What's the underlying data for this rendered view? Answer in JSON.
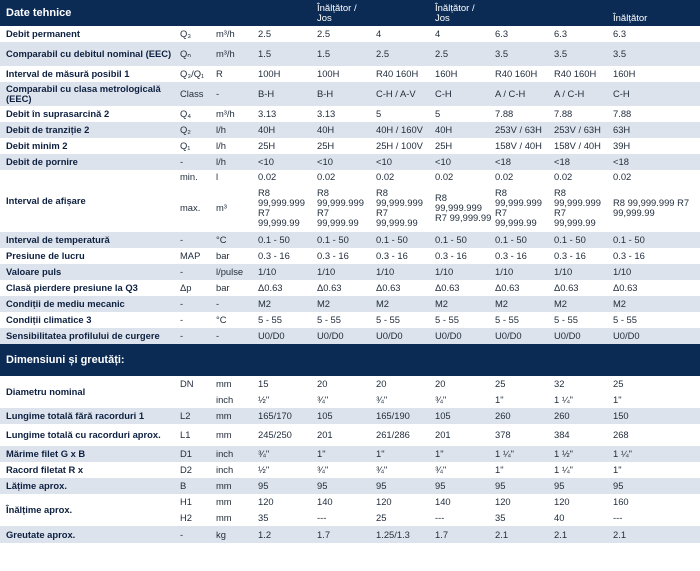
{
  "tech": {
    "title": "Date tehnice",
    "headers": [
      "",
      "",
      "",
      "",
      "Înălțător / Jos",
      "",
      "Înălțător / Jos",
      "",
      "",
      "Înălțător"
    ],
    "rows": [
      {
        "cells": [
          "Debit permanent",
          "Q₃",
          "m³/h",
          "2.5",
          "2.5",
          "4",
          "4",
          "6.3",
          "6.3",
          "6.3"
        ]
      },
      {
        "cells": [
          "Comparabil cu debitul nominal (EEC)",
          "Qₙ",
          "m³/h",
          "1.5",
          "1.5",
          "2.5",
          "2.5",
          "3.5",
          "3.5",
          "3.5"
        ]
      },
      {
        "cells": [
          "Interval de măsură posibil 1",
          "Q₃/Q₁",
          "R",
          "100H",
          "100H",
          "R40 160H",
          "160H",
          "R40 160H",
          "R40 160H",
          "160H"
        ]
      },
      {
        "cells": [
          "Comparabil cu clasa metrologicală (EEC)",
          "Class",
          "-",
          "B-H",
          "B-H",
          "C-H / A-V",
          "C-H",
          "A / C-H",
          "A / C-H",
          "C-H"
        ]
      },
      {
        "cells": [
          "Debit în suprasarcină 2",
          "Q₄",
          "m³/h",
          "3.13",
          "3.13",
          "5",
          "5",
          "7.88",
          "7.88",
          "7.88"
        ]
      },
      {
        "cells": [
          "Debit de tranziție 2",
          "Q₂",
          "l/h",
          "40H",
          "40H",
          "40H / 160V",
          "40H",
          "253V / 63H",
          "253V / 63H",
          "63H"
        ]
      },
      {
        "cells": [
          "Debit minim 2",
          "Q₁",
          "l/h",
          "25H",
          "25H",
          "25H / 100V",
          "25H",
          "158V / 40H",
          "158V / 40H",
          "39H"
        ]
      },
      {
        "cells": [
          "Debit de pornire",
          "-",
          "l/h",
          "<10",
          "<10",
          "<10",
          "<10",
          "<18",
          "<18",
          "<18"
        ]
      }
    ],
    "display": {
      "label": "Interval de afișare",
      "min": {
        "sym": "min.",
        "unit": "l",
        "values": [
          "0.02",
          "0.02",
          "0.02",
          "0.02",
          "0.02",
          "0.02",
          "0.02"
        ]
      },
      "max": {
        "sym": "max.",
        "unit": "m³",
        "values": [
          "R8 99,999.999 R7 99,999.99",
          "R8 99,999.999 R7 99,999.99",
          "R8 99,999.999 R7 99,999.99",
          "R8 99,999.999 R7 99,999.99",
          "R8 99,999.999 R7 99,999.99",
          "R8 99,999.999 R7 99,999.99",
          "R8 99,999.999 R7 99,999.99"
        ]
      }
    },
    "rows2": [
      {
        "cells": [
          "Interval de temperatură",
          "-",
          "°C",
          "0.1 - 50",
          "0.1 - 50",
          "0.1 - 50",
          "0.1 - 50",
          "0.1 - 50",
          "0.1 - 50",
          "0.1 - 50"
        ]
      },
      {
        "cells": [
          "Presiune de lucru",
          "MAP",
          "bar",
          "0.3 - 16",
          "0.3 - 16",
          "0.3 - 16",
          "0.3 - 16",
          "0.3 - 16",
          "0.3 - 16",
          "0.3 - 16"
        ]
      },
      {
        "cells": [
          "Valoare puls",
          "-",
          "l/pulse",
          "1/10",
          "1/10",
          "1/10",
          "1/10",
          "1/10",
          "1/10",
          "1/10"
        ]
      },
      {
        "cells": [
          "Clasă pierdere presiune la Q3",
          "Δp",
          "bar",
          "Δ0.63",
          "Δ0.63",
          "Δ0.63",
          "Δ0.63",
          "Δ0.63",
          "Δ0.63",
          "Δ0.63"
        ]
      },
      {
        "cells": [
          "Condiții de mediu mecanic",
          "-",
          "-",
          "M2",
          "M2",
          "M2",
          "M2",
          "M2",
          "M2",
          "M2"
        ]
      },
      {
        "cells": [
          "Condiții climatice 3",
          "-",
          "°C",
          "5 - 55",
          "5 - 55",
          "5 - 55",
          "5 - 55",
          "5 - 55",
          "5 - 55",
          "5 - 55"
        ]
      },
      {
        "cells": [
          "Sensibilitatea profilului de curgere",
          "-",
          "-",
          "U0/D0",
          "U0/D0",
          "U0/D0",
          "U0/D0",
          "U0/D0",
          "U0/D0",
          "U0/D0"
        ]
      }
    ]
  },
  "dims": {
    "title": "Dimensiuni și greutăți:",
    "nominal": {
      "label": "Diametru nominal",
      "dn": {
        "sym": "DN",
        "unit": "mm",
        "values": [
          "15",
          "20",
          "20",
          "20",
          "25",
          "32",
          "25"
        ]
      },
      "inch": {
        "sym": "",
        "unit": "inch",
        "values": [
          "½\"",
          "¾\"",
          "¾\"",
          "¾\"",
          "1\"",
          "1 ¼\"",
          "1\""
        ]
      }
    },
    "rows": [
      {
        "cells": [
          "Lungime totală fără racorduri 1",
          "L2",
          "mm",
          "165/170",
          "105",
          "165/190",
          "105",
          "260",
          "260",
          "150"
        ]
      },
      {
        "cells": [
          "Lungime totală cu racorduri aprox.",
          "L1",
          "mm",
          "245/250",
          "201",
          "261/286",
          "201",
          "378",
          "384",
          "268"
        ]
      },
      {
        "cells": [
          "Mărime filet G x B",
          "D1",
          "inch",
          "¾\"",
          "1\"",
          "1\"",
          "1\"",
          "1 ¼\"",
          "1 ½\"",
          "1 ¼\""
        ]
      },
      {
        "cells": [
          "Racord filetat R x",
          "D2",
          "inch",
          "½\"",
          "¾\"",
          "¾\"",
          "¾\"",
          "1\"",
          "1 ¼\"",
          "1\""
        ]
      },
      {
        "cells": [
          "Lățime aprox.",
          "B",
          "mm",
          "95",
          "95",
          "95",
          "95",
          "95",
          "95",
          "95"
        ]
      }
    ],
    "height": {
      "label": "Înălțime aprox.",
      "h1": {
        "sym": "H1",
        "unit": "mm",
        "values": [
          "120",
          "140",
          "120",
          "140",
          "120",
          "120",
          "160"
        ]
      },
      "h2": {
        "sym": "H2",
        "unit": "mm",
        "values": [
          "35",
          "---",
          "25",
          "---",
          "35",
          "40",
          "---"
        ]
      }
    },
    "weight": {
      "cells": [
        "Greutate aprox.",
        "-",
        "kg",
        "1.2",
        "1.7",
        "1.25/1.3",
        "1.7",
        "2.1",
        "2.1",
        "2.1"
      ]
    }
  }
}
